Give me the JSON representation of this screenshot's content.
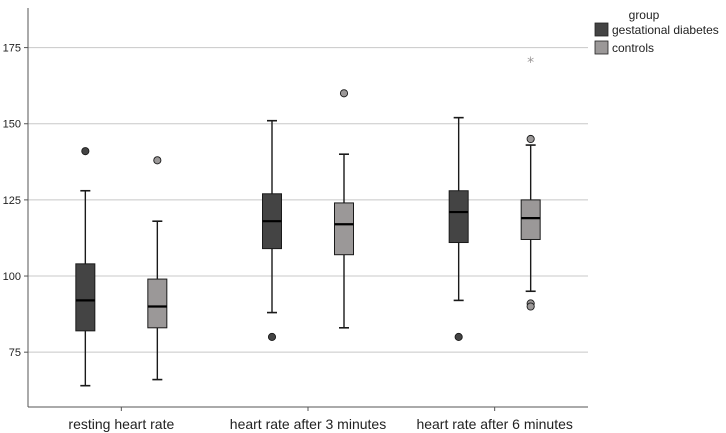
{
  "chart_data": {
    "type": "boxplot",
    "title": "",
    "xlabel": "",
    "ylabel": "",
    "ylim": [
      57,
      188
    ],
    "yticks": [
      75,
      100,
      125,
      150,
      175
    ],
    "grid": "horizontal",
    "categories": [
      "resting heart rate",
      "heart rate after 3 minutes",
      "heart rate after 6 minutes"
    ],
    "legend": {
      "title": "group",
      "position": "top-right",
      "entries": [
        "gestational diabetes",
        "controls"
      ]
    },
    "series": [
      {
        "name": "gestational diabetes",
        "color": "#444444",
        "boxes": [
          {
            "min": 64,
            "q1": 82,
            "median": 92,
            "q3": 104,
            "max": 128,
            "outliers": [
              141
            ],
            "extremes": []
          },
          {
            "min": 88,
            "q1": 109,
            "median": 118,
            "q3": 127,
            "max": 151,
            "outliers": [
              80
            ],
            "extremes": []
          },
          {
            "min": 92,
            "q1": 111,
            "median": 121,
            "q3": 128,
            "max": 152,
            "outliers": [
              80
            ],
            "extremes": []
          }
        ]
      },
      {
        "name": "controls",
        "color": "#9b9898",
        "boxes": [
          {
            "min": 66,
            "q1": 83,
            "median": 90,
            "q3": 99,
            "max": 118,
            "outliers": [
              138
            ],
            "extremes": []
          },
          {
            "min": 83,
            "q1": 107,
            "median": 117,
            "q3": 124,
            "max": 140,
            "outliers": [
              160
            ],
            "extremes": []
          },
          {
            "min": 95,
            "q1": 112,
            "median": 119,
            "q3": 125,
            "max": 143,
            "outliers": [
              145,
              91,
              90
            ],
            "extremes": [
              171
            ]
          }
        ]
      }
    ]
  }
}
